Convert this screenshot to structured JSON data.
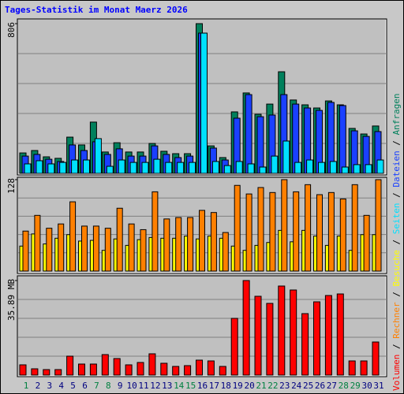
{
  "chart_data": [
    {
      "type": "bar",
      "title": "Tages-Statistik im Monat Maerz 2026",
      "ylim": [
        0,
        806
      ],
      "yticks": [
        806
      ],
      "series": [
        {
          "name": "Anfragen",
          "color": "#00805c",
          "values": [
            110,
            123,
            89,
            81,
            195,
            153,
            276,
            115,
            165,
            115,
            115,
            161,
            119,
            106,
            106,
            806,
            148,
            85,
            331,
            433,
            318,
            373,
            547,
            395,
            369,
            352,
            390,
            369,
            242,
            212,
            255
          ]
        },
        {
          "name": "Dateien",
          "color": "#1a40ff",
          "values": [
            93,
            102,
            76,
            64,
            153,
            123,
            170,
            102,
            132,
            93,
            93,
            148,
            102,
            85,
            93,
            755,
            136,
            72,
            297,
            424,
            305,
            314,
            424,
            373,
            352,
            339,
            382,
            365,
            229,
            199,
            225
          ]
        },
        {
          "name": "Seiten",
          "color": "#00e0ff",
          "values": [
            51,
            68,
            51,
            59,
            72,
            72,
            187,
            38,
            72,
            59,
            59,
            76,
            59,
            59,
            59,
            755,
            64,
            42,
            64,
            51,
            34,
            93,
            174,
            59,
            72,
            59,
            64,
            34,
            47,
            47,
            72
          ]
        }
      ]
    },
    {
      "type": "bar",
      "ylim": [
        0,
        128
      ],
      "yticks": [
        128
      ],
      "series": [
        {
          "name": "Besuche",
          "color": "#ffff00",
          "values": [
            35,
            52,
            38,
            46,
            51,
            42,
            43,
            29,
            45,
            36,
            44,
            47,
            46,
            46,
            49,
            45,
            49,
            46,
            35,
            29,
            36,
            40,
            57,
            41,
            57,
            49,
            36,
            49,
            29,
            51,
            51
          ]
        },
        {
          "name": "Rechner",
          "color": "#ff8000",
          "values": [
            56,
            78,
            60,
            66,
            97,
            63,
            63,
            60,
            88,
            66,
            58,
            111,
            73,
            75,
            75,
            85,
            82,
            54,
            120,
            108,
            117,
            110,
            128,
            111,
            121,
            107,
            110,
            101,
            121,
            78,
            128
          ]
        }
      ]
    },
    {
      "type": "bar",
      "ylim": [
        0,
        35.89
      ],
      "yticks": [
        {
          "value": 35.89,
          "label": "35.89 MB"
        }
      ],
      "categories": [
        "1",
        "2",
        "3",
        "4",
        "5",
        "6",
        "7",
        "8",
        "9",
        "10",
        "11",
        "12",
        "13",
        "14",
        "15",
        "16",
        "17",
        "18",
        "19",
        "20",
        "21",
        "22",
        "23",
        "24",
        "25",
        "26",
        "27",
        "28",
        "29",
        "30",
        "31"
      ],
      "label_colors": [
        "#008040",
        "#000080",
        "#000080",
        "#000080",
        "#000080",
        "#000080",
        "#008040",
        "#008040",
        "#000080",
        "#000080",
        "#000080",
        "#000080",
        "#000080",
        "#008040",
        "#008040",
        "#000080",
        "#000080",
        "#000080",
        "#000080",
        "#000080",
        "#008040",
        "#008040",
        "#000080",
        "#000080",
        "#000080",
        "#000080",
        "#000080",
        "#008040",
        "#008040",
        "#000080",
        "#000080"
      ],
      "series": [
        {
          "name": "Volumen",
          "color": "#ff0000",
          "values": [
            3.89,
            2.39,
            2.09,
            2.09,
            7.18,
            4.19,
            4.19,
            7.78,
            6.28,
            3.89,
            4.79,
            8.08,
            4.49,
            3.29,
            3.59,
            5.68,
            5.38,
            3.29,
            21.53,
            35.89,
            29.91,
            27.22,
            33.8,
            32.3,
            23.33,
            27.81,
            30.21,
            30.8,
            5.38,
            5.38,
            12.56
          ]
        }
      ]
    },
    {
      "legend_separator": " / "
    }
  ]
}
